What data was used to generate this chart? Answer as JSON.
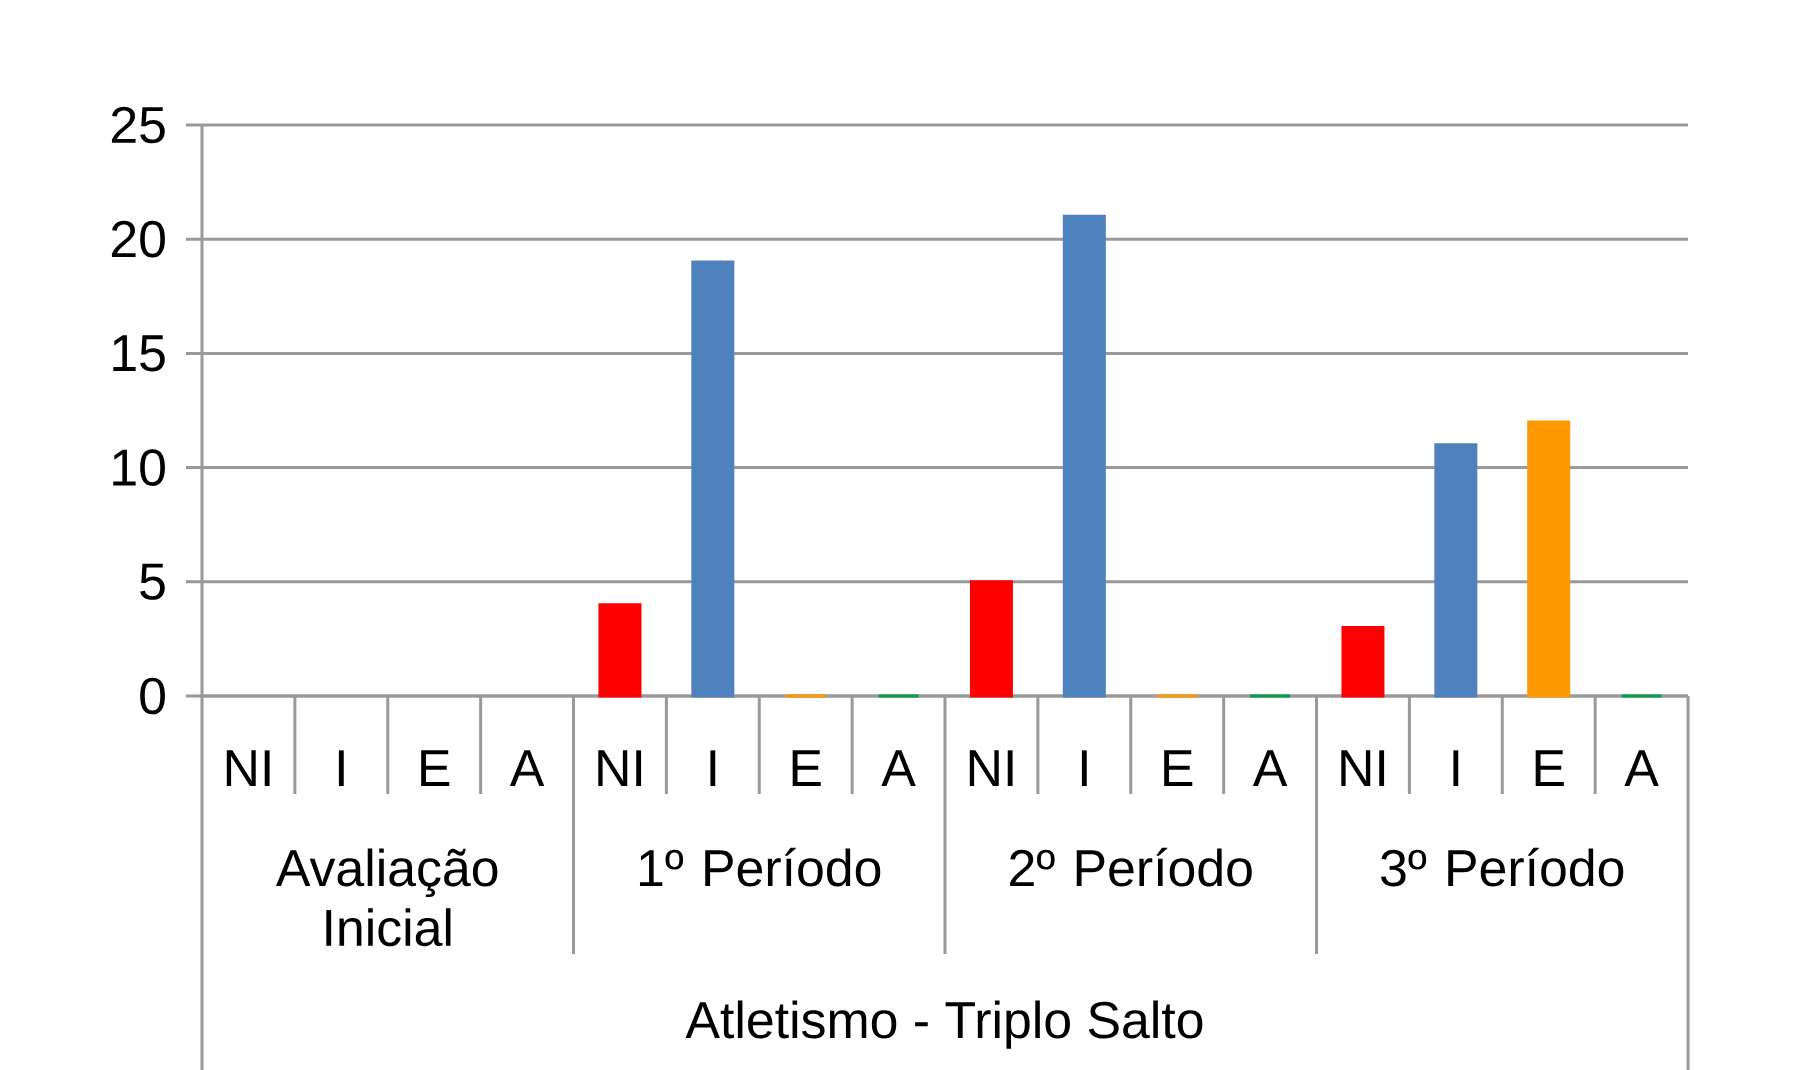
{
  "chart_data": {
    "type": "bar",
    "categories": [
      "NI",
      "I",
      "E",
      "A",
      "NI",
      "I",
      "E",
      "A",
      "NI",
      "I",
      "E",
      "A",
      "NI",
      "I",
      "E",
      "A"
    ],
    "values": [
      null,
      null,
      null,
      null,
      4,
      19,
      0,
      0,
      5,
      21,
      0,
      0,
      3,
      11,
      12,
      0
    ],
    "colors": [
      "#ff0000",
      "#4f81bd",
      "#ff9900",
      "#00a04b",
      "#ff0000",
      "#4f81bd",
      "#ff9900",
      "#00a04b",
      "#ff0000",
      "#4f81bd",
      "#ff9900",
      "#00a04b",
      "#ff0000",
      "#4f81bd",
      "#ff9900",
      "#00a04b"
    ],
    "ylim": [
      0,
      25
    ],
    "yticks": [
      0,
      5,
      10,
      15,
      20,
      25
    ],
    "grid": "y",
    "xlabel": "Atletismo - Triplo Salto",
    "annotations": [
      "Avaliação Inicial",
      "1º Período",
      "2º Período",
      "3º Período"
    ]
  }
}
